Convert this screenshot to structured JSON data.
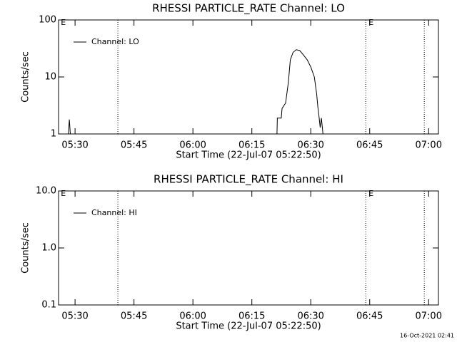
{
  "chart_data": [
    {
      "type": "line",
      "title": "RHESSI PARTICLE_RATE Channel: LO",
      "xlabel": "Start Time (22-Jul-07 05:22:50)",
      "ylabel": "Counts/sec",
      "log_y": true,
      "ylim": [
        1,
        100
      ],
      "yticks": [
        1,
        10,
        100
      ],
      "xlim": [
        25.8,
        122.5
      ],
      "xticks": [
        {
          "value": 30,
          "label": "05:30"
        },
        {
          "value": 45,
          "label": "05:45"
        },
        {
          "value": 60,
          "label": "06:00"
        },
        {
          "value": 75,
          "label": "06:15"
        },
        {
          "value": 90,
          "label": "06:30"
        },
        {
          "value": 105,
          "label": "06:45"
        },
        {
          "value": 120,
          "label": "07:00"
        }
      ],
      "markers": [
        40.9,
        104,
        118.9
      ],
      "annotations": [
        {
          "x": 26.4,
          "text": "E"
        },
        {
          "x": 104.7,
          "text": "E"
        }
      ],
      "legend": "upper left",
      "x": [
        28.3,
        28.55,
        28.8,
        60,
        81.4,
        81.5,
        82.5,
        82.7,
        83.6,
        84.3,
        84.8,
        85.5,
        86.3,
        87.2,
        88.2,
        89.1,
        90,
        90.9,
        91.5,
        91.8,
        92.1,
        92.4,
        92.7,
        93.1
      ],
      "series": [
        {
          "name": "Channel: LO",
          "color": "#000000",
          "values": [
            1,
            1.8,
            1,
            null,
            1,
            1.9,
            1.9,
            2.8,
            3.5,
            8,
            20,
            27,
            30,
            29,
            24,
            20,
            15,
            10,
            5,
            3,
            2,
            1.3,
            1.9,
            1
          ]
        }
      ]
    },
    {
      "type": "line",
      "title": "RHESSI PARTICLE_RATE Channel: HI",
      "xlabel": "Start Time (22-Jul-07 05:22:50)",
      "ylabel": "Counts/sec",
      "log_y": true,
      "ylim": [
        0.1,
        10
      ],
      "yticks": [
        0.1,
        {
          "value": 1,
          "label": "1.0"
        },
        {
          "value": 10,
          "label": "10.0"
        }
      ],
      "xlim": [
        25.8,
        122.5
      ],
      "xticks": [
        {
          "value": 30,
          "label": "05:30"
        },
        {
          "value": 45,
          "label": "05:45"
        },
        {
          "value": 60,
          "label": "06:00"
        },
        {
          "value": 75,
          "label": "06:15"
        },
        {
          "value": 90,
          "label": "06:30"
        },
        {
          "value": 105,
          "label": "06:45"
        },
        {
          "value": 120,
          "label": "07:00"
        }
      ],
      "markers": [
        40.9,
        104,
        118.9
      ],
      "annotations": [
        {
          "x": 26.4,
          "text": "E"
        },
        {
          "x": 104.7,
          "text": "E"
        }
      ],
      "legend": "upper left",
      "x": [],
      "series": [
        {
          "name": "Channel: HI",
          "color": "#000000",
          "values": []
        }
      ]
    }
  ],
  "footer": "16-Oct-2021 02:41"
}
